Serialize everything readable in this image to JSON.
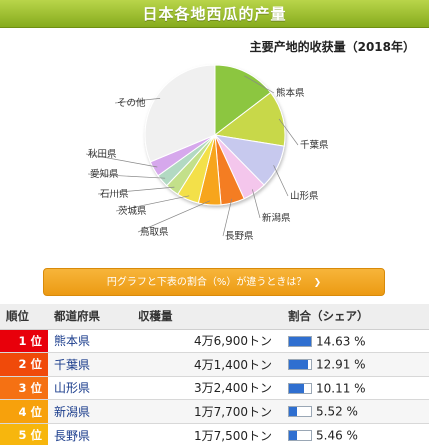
{
  "page": {
    "title": "日本各地西瓜的产量",
    "subtitle": "主要产地的收获量（2018年）",
    "pie_button_label": "円グラフと下表の割合（%）が違うときは？",
    "pie_button_icon": "chevron-down-icon"
  },
  "table": {
    "headers": [
      "順位",
      "都道府県",
      "収穫量",
      "割合（シェア）"
    ],
    "rows": [
      {
        "rank": "1 位",
        "pref": "熊本県",
        "amount": "4万6,900トン",
        "share": "14.63 %",
        "share_value": 14.63,
        "color": "#e8000b"
      },
      {
        "rank": "2 位",
        "pref": "千葉県",
        "amount": "4万1,400トン",
        "share": "12.91 %",
        "share_value": 12.91,
        "color": "#f04a0a"
      },
      {
        "rank": "3 位",
        "pref": "山形県",
        "amount": "3万2,400トン",
        "share": "10.11 %",
        "share_value": 10.11,
        "color": "#f57113"
      },
      {
        "rank": "4 位",
        "pref": "新潟県",
        "amount": "1万7,700トン",
        "share": "5.52 %",
        "share_value": 5.52,
        "color": "#f7a10c"
      },
      {
        "rank": "5 位",
        "pref": "長野県",
        "amount": "1万7,500トン",
        "share": "5.46 %",
        "share_value": 5.46,
        "color": "#f7b60d"
      }
    ]
  },
  "chart_data": {
    "type": "pie",
    "title": "主要产地的收获量（2018年）",
    "slices": [
      {
        "label": "熊本県",
        "value": 14.63,
        "color": "#8cc63f"
      },
      {
        "label": "千葉県",
        "value": 12.91,
        "color": "#c8d84a"
      },
      {
        "label": "山形県",
        "value": 10.11,
        "color": "#c7c9ee"
      },
      {
        "label": "新潟県",
        "value": 5.52,
        "color": "#f4c6ec"
      },
      {
        "label": "長野県",
        "value": 5.46,
        "color": "#f47d20"
      },
      {
        "label": "鳥取県",
        "value": 5.2,
        "color": "#f7a51c"
      },
      {
        "label": "茨城県",
        "value": 5.1,
        "color": "#f3e04a"
      },
      {
        "label": "石川県",
        "value": 3.2,
        "color": "#c3e08a"
      },
      {
        "label": "愛知県",
        "value": 3.0,
        "color": "#b2d9c2"
      },
      {
        "label": "秋田県",
        "value": 3.6,
        "color": "#d6a8ec"
      },
      {
        "label": "その他",
        "value": 31.27,
        "color": "#f0f0f0"
      }
    ],
    "start": "top",
    "direction": "clockwise"
  }
}
